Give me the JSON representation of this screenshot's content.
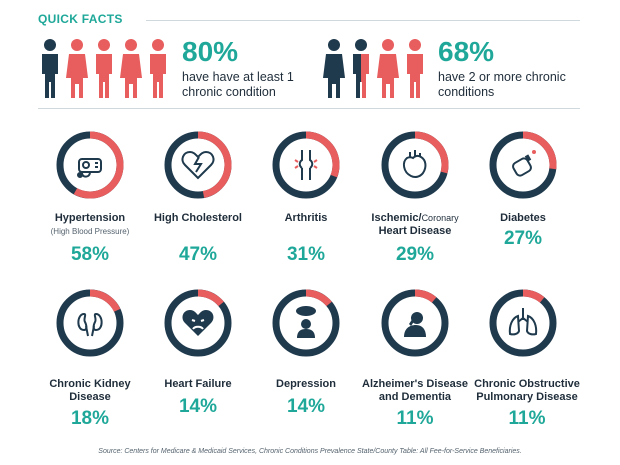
{
  "header": {
    "title": "QUICK FACTS"
  },
  "facts": [
    {
      "percent": "80%",
      "description": "have have at least 1 chronic condition"
    },
    {
      "percent": "68%",
      "description": "have 2 or more chronic conditions"
    }
  ],
  "colors": {
    "teal": "#1fa899",
    "navy": "#1f3a4d",
    "coral": "#e85d5d",
    "grey": "#cfd8dc"
  },
  "conditions": [
    {
      "label": "Hypertension",
      "sublabel": "(High Blood Pressure)",
      "percent": "58%",
      "fraction": 0.58,
      "icon": "blood-pressure-monitor-icon"
    },
    {
      "label": "High Cholesterol",
      "percent": "47%",
      "fraction": 0.47,
      "icon": "broken-heart-icon"
    },
    {
      "label": "Arthritis",
      "percent": "31%",
      "fraction": 0.31,
      "icon": "knee-joint-icon"
    },
    {
      "label": "Ischemic/",
      "label_small": "Coronary",
      "label2": "Heart Disease",
      "percent": "29%",
      "fraction": 0.29,
      "icon": "anatomical-heart-icon"
    },
    {
      "label": "Diabetes",
      "percent": "27%",
      "fraction": 0.27,
      "icon": "glucose-meter-icon"
    },
    {
      "label": "Chronic Kidney Disease",
      "percent": "18%",
      "fraction": 0.18,
      "icon": "kidneys-icon"
    },
    {
      "label": "Heart Failure",
      "percent": "14%",
      "fraction": 0.14,
      "icon": "sad-heart-icon"
    },
    {
      "label": "Depression",
      "percent": "14%",
      "fraction": 0.14,
      "icon": "rain-cloud-person-icon"
    },
    {
      "label": "Alzheimer's Disease and Dementia",
      "percent": "11%",
      "fraction": 0.11,
      "icon": "head-in-hands-icon"
    },
    {
      "label": "Chronic Obstructive Pulmonary Disease",
      "percent": "11%",
      "fraction": 0.11,
      "icon": "lungs-icon"
    }
  ],
  "source": "Source: Centers for Medicare & Medicaid Services, Chronic Conditions Prevalence State/County Table: All Fee-for-Service Beneficiaries."
}
